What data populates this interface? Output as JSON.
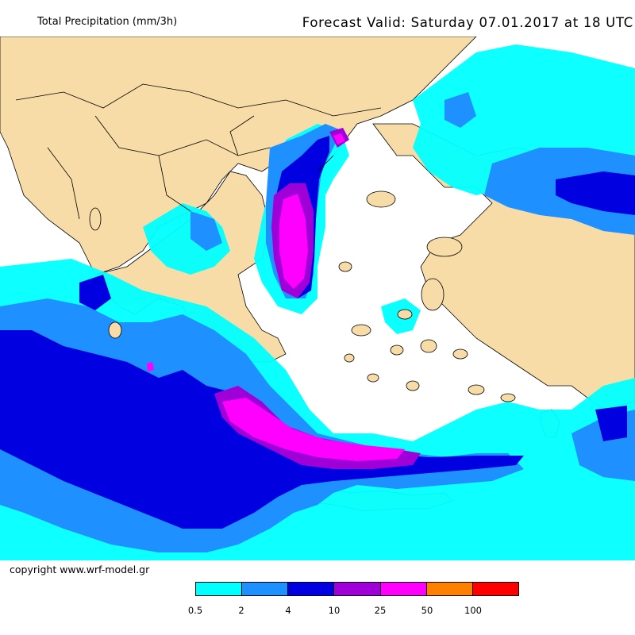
{
  "header": {
    "title": "Total Precipitation (mm/3h)",
    "forecast": "Forecast Valid:  Saturday 07.01.2017 at 18 UTC"
  },
  "footer": {
    "copyright": "copyright www.wrf-model.gr"
  },
  "legend": {
    "colors": [
      "#00ffff",
      "#1e90ff",
      "#0000e0",
      "#a000d8",
      "#ff00ff",
      "#ff7f00",
      "#ff0000"
    ],
    "labels": [
      "0.5",
      "2",
      "4",
      "10",
      "25",
      "50",
      "100"
    ]
  },
  "map": {
    "land_color": "#f8dca8",
    "sea_color": "#ffffff",
    "border_color": "#000000"
  }
}
